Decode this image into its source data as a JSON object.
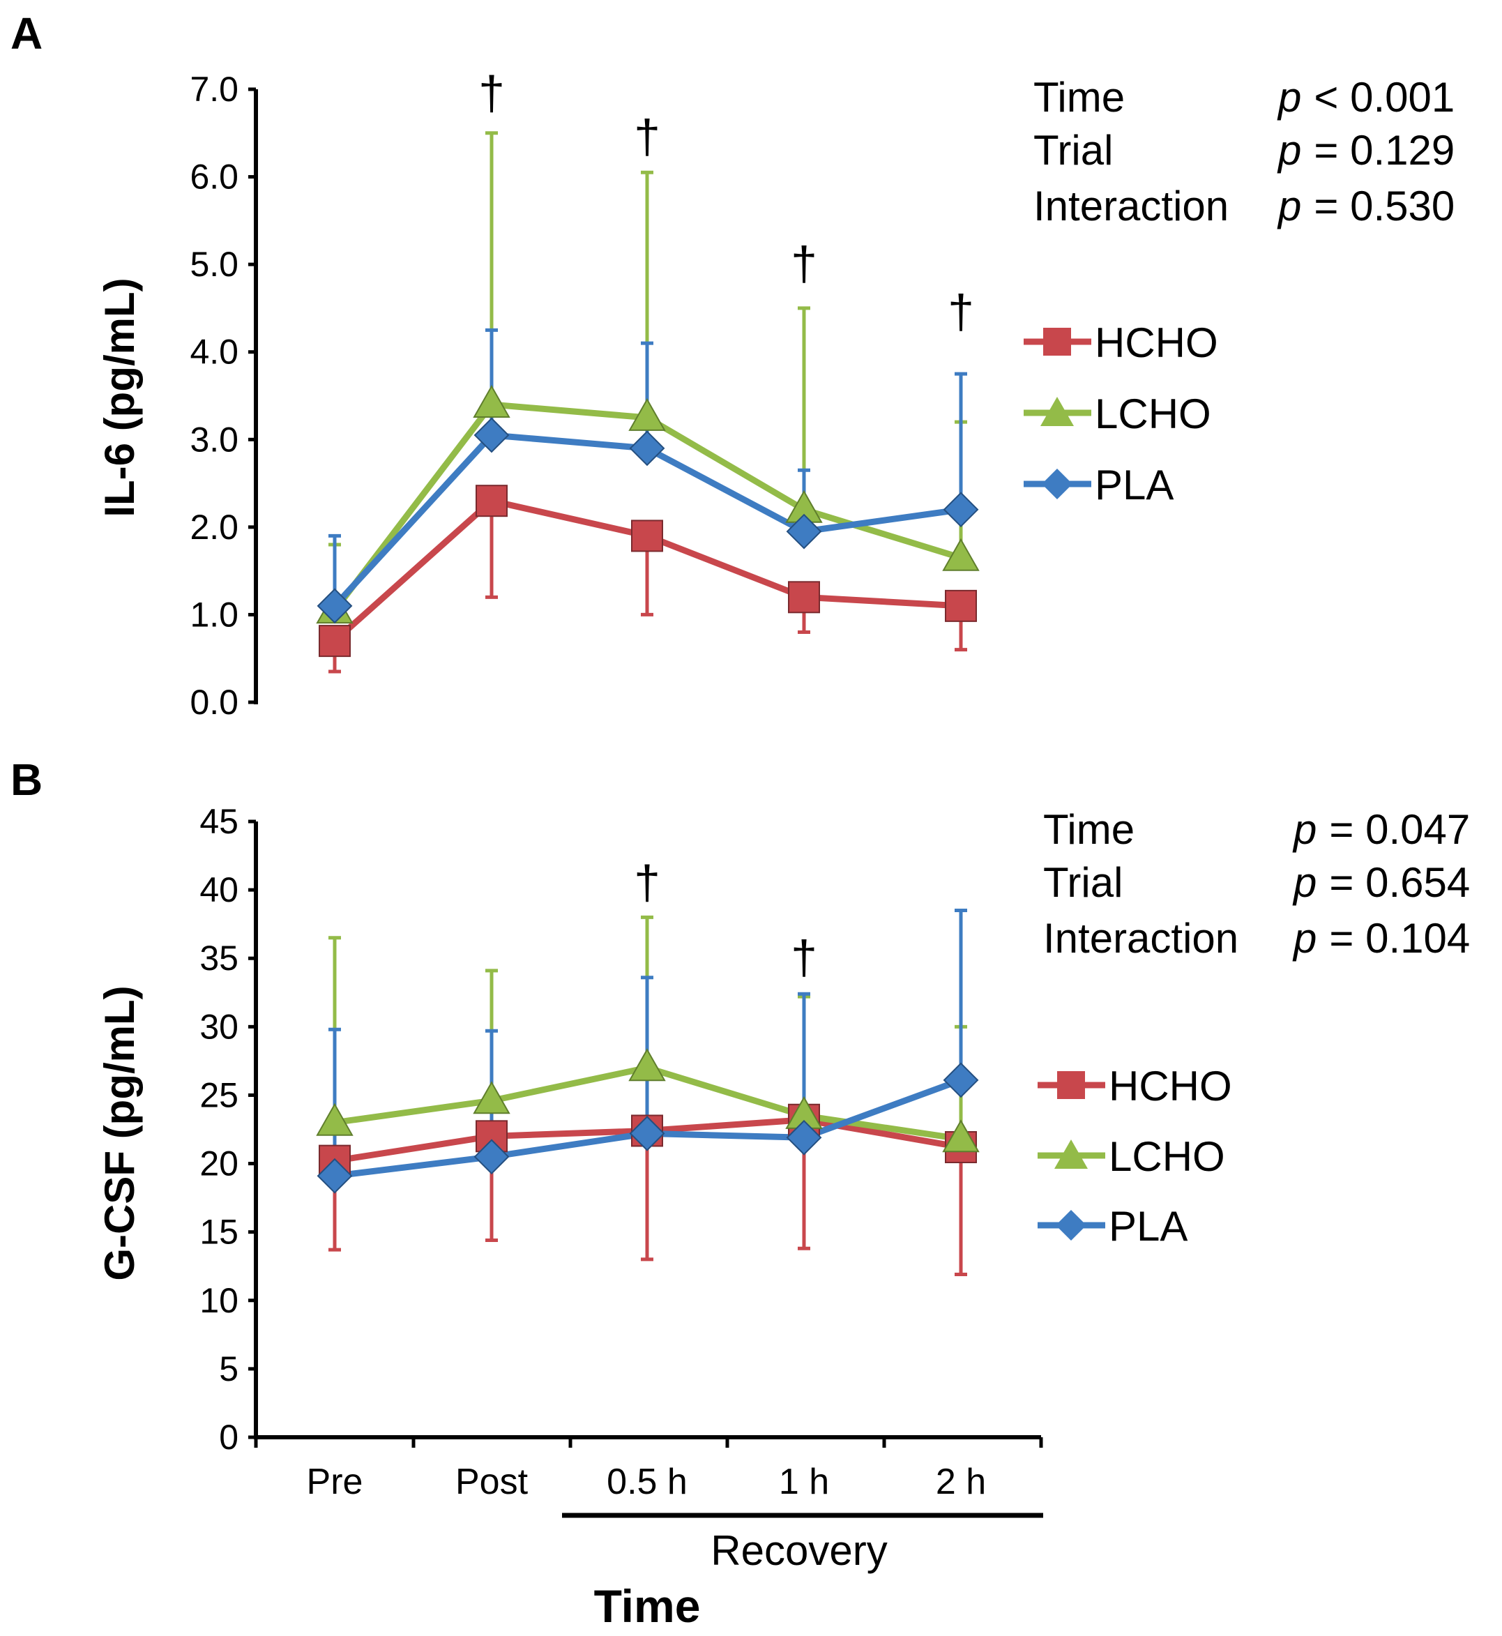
{
  "colors": {
    "HCHO": "#c8474c",
    "LCHO": "#93bb48",
    "PLA": "#3e7cc2"
  },
  "categories": [
    "Pre",
    "Post",
    "0.5 h",
    "1 h",
    "2 h"
  ],
  "recovery_label": "Recovery",
  "time_label": "Time",
  "chart_data": [
    {
      "type": "line",
      "panel": "A",
      "ylabel": "IL-6 (pg/mL)",
      "ylim": [
        0,
        7
      ],
      "yticks": [
        "0.0",
        "1.0",
        "2.0",
        "3.0",
        "4.0",
        "5.0",
        "6.0",
        "7.0"
      ],
      "tick_step": 1,
      "xlabel": "",
      "categories": [
        "Pre",
        "Post",
        "0.5 h",
        "1 h",
        "2 h"
      ],
      "series": [
        {
          "name": "HCHO",
          "marker": "square",
          "values": [
            0.7,
            2.3,
            1.9,
            1.2,
            1.1
          ],
          "err_dir": "down",
          "err": [
            0.35,
            1.1,
            0.9,
            0.4,
            0.5
          ]
        },
        {
          "name": "LCHO",
          "marker": "triangle",
          "values": [
            1.05,
            3.4,
            3.25,
            2.2,
            1.65
          ],
          "err_dir": "up",
          "err": [
            0.75,
            3.1,
            2.8,
            2.3,
            1.55
          ]
        },
        {
          "name": "PLA",
          "marker": "diamond",
          "values": [
            1.1,
            3.05,
            2.9,
            1.95,
            2.2
          ],
          "err_dir": "up",
          "err": [
            0.8,
            1.2,
            1.2,
            0.7,
            1.55
          ]
        }
      ],
      "daggers": [
        {
          "category": "Post",
          "text": "†",
          "y": 6.95
        },
        {
          "category": "0.5 h",
          "text": "†",
          "y": 6.45
        },
        {
          "category": "1 h",
          "text": "†",
          "y": 5.0
        },
        {
          "category": "2 h",
          "text": "†",
          "y": 4.45
        }
      ],
      "stats": [
        {
          "effect": "Time",
          "p_symbol": "p",
          "p_value": "< 0.001"
        },
        {
          "effect": "Trial",
          "p_symbol": "p",
          "p_value": "= 0.129"
        },
        {
          "effect": "Interaction",
          "p_symbol": "p",
          "p_value": "= 0.530"
        }
      ],
      "legend": [
        "HCHO",
        "LCHO",
        "PLA"
      ]
    },
    {
      "type": "line",
      "panel": "B",
      "ylabel": "G-CSF (pg/mL)",
      "ylim": [
        0,
        45
      ],
      "yticks": [
        "0",
        "5",
        "10",
        "15",
        "20",
        "25",
        "30",
        "35",
        "40",
        "45"
      ],
      "tick_step": 5,
      "xlabel": "Time",
      "categories": [
        "Pre",
        "Post",
        "0.5 h",
        "1 h",
        "2 h"
      ],
      "series": [
        {
          "name": "HCHO",
          "marker": "square",
          "values": [
            20.2,
            22.0,
            22.4,
            23.2,
            21.2
          ],
          "err_dir": "down",
          "err": [
            6.5,
            7.6,
            9.4,
            9.4,
            9.3
          ]
        },
        {
          "name": "LCHO",
          "marker": "triangle",
          "values": [
            23.0,
            24.6,
            27.0,
            23.5,
            21.8
          ],
          "err_dir": "up",
          "err": [
            13.5,
            9.5,
            11.0,
            8.7,
            8.2
          ]
        },
        {
          "name": "PLA",
          "marker": "diamond",
          "values": [
            19.1,
            20.5,
            22.2,
            21.9,
            26.1
          ],
          "err_dir": "up",
          "err": [
            10.7,
            9.2,
            11.4,
            10.5,
            12.4
          ]
        }
      ],
      "daggers": [
        {
          "category": "0.5 h",
          "text": "†",
          "y": 40.5
        },
        {
          "category": "1 h",
          "text": "†",
          "y": 35.0
        }
      ],
      "stats": [
        {
          "effect": "Time",
          "p_symbol": "p",
          "p_value": "= 0.047"
        },
        {
          "effect": "Trial",
          "p_symbol": "p",
          "p_value": "= 0.654"
        },
        {
          "effect": "Interaction",
          "p_symbol": "p",
          "p_value": "= 0.104"
        }
      ],
      "legend": [
        "HCHO",
        "LCHO",
        "PLA"
      ]
    }
  ]
}
